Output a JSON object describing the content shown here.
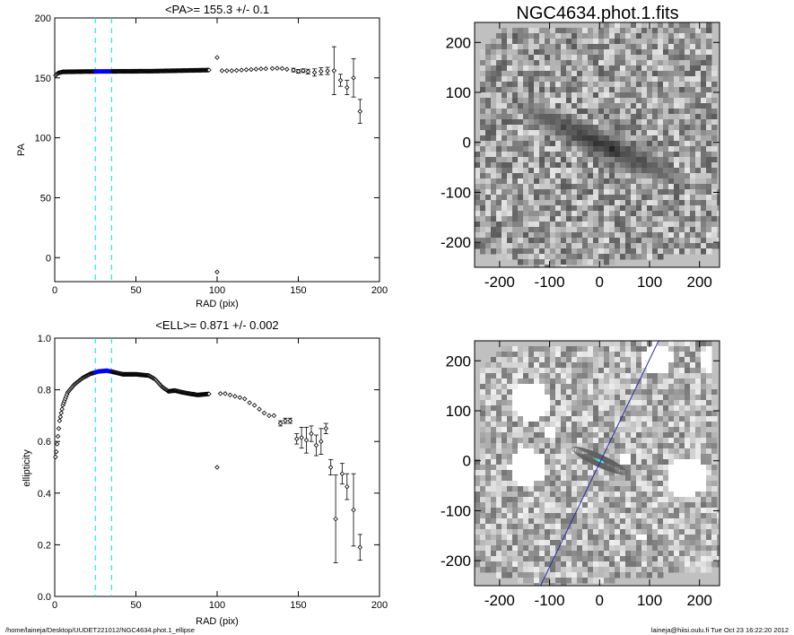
{
  "footer": {
    "path": "/home/laineja/Desktop/UUDET221012/NGC4634.phot.1_ellipse",
    "stamp": "laineja@hiisi.oulu.fi  Tue Oct 23 16:22:20 2012"
  },
  "colors": {
    "cyan_marker": "#00e5e5",
    "blue_points": "#0000ff",
    "sky_bg": "#c0c0c0",
    "points": "#000000"
  },
  "chart_data": [
    {
      "type": "scatter",
      "title": "<PA>= 155.3 +/-   0.1",
      "xlabel": "RAD (pix)",
      "ylabel": "PA",
      "xlim": [
        0,
        200
      ],
      "ylim": [
        -20,
        200
      ],
      "xticks": [
        "0",
        "50",
        "100",
        "150",
        "200"
      ],
      "yticks": [
        "0",
        "50",
        "100",
        "150",
        "200"
      ],
      "vlines": [
        25,
        35
      ],
      "highlight_range": [
        25,
        35
      ],
      "series": [
        {
          "dense": {
            "x_start": 0.5,
            "x_end": 95,
            "step": 0.5,
            "values_at": [
              [
                0.5,
                152
              ],
              [
                2,
                154
              ],
              [
                5,
                155
              ],
              [
                20,
                155.3
              ],
              [
                60,
                155.6
              ],
              [
                95,
                156.5
              ]
            ]
          },
          "points": [
            {
              "x": 100,
              "y": 167
            },
            {
              "x": 100,
              "y": -12
            },
            {
              "x": 103,
              "y": 156
            },
            {
              "x": 106,
              "y": 156
            },
            {
              "x": 109,
              "y": 156
            },
            {
              "x": 112,
              "y": 156.2
            },
            {
              "x": 115,
              "y": 156.5
            },
            {
              "x": 118,
              "y": 156.8
            },
            {
              "x": 121,
              "y": 157
            },
            {
              "x": 124,
              "y": 157.3
            },
            {
              "x": 127,
              "y": 157.5
            },
            {
              "x": 130,
              "y": 157.6
            },
            {
              "x": 134,
              "y": 157.8
            },
            {
              "x": 137,
              "y": 158
            },
            {
              "x": 140,
              "y": 157.8
            },
            {
              "x": 143,
              "y": 157.2
            },
            {
              "x": 147,
              "y": 156.5,
              "err": 1.5
            },
            {
              "x": 150,
              "y": 155.5,
              "err": 1.5
            },
            {
              "x": 153,
              "y": 156,
              "err": 1.5
            },
            {
              "x": 156,
              "y": 155.2,
              "err": 2
            },
            {
              "x": 160,
              "y": 154.5,
              "err": 3
            },
            {
              "x": 164,
              "y": 155.5,
              "err": 3
            },
            {
              "x": 168,
              "y": 155.8,
              "err": 3
            },
            {
              "x": 172,
              "y": 156,
              "err": 20
            },
            {
              "x": 176,
              "y": 148,
              "err": 5
            },
            {
              "x": 180,
              "y": 142,
              "err": 6
            },
            {
              "x": 184,
              "y": 150,
              "err": 16
            },
            {
              "x": 188,
              "y": 122,
              "err": 10
            }
          ]
        }
      ]
    },
    {
      "type": "scatter",
      "title": "<ELL>= 0.871 +/-  0.002",
      "xlabel": "RAD (pix)",
      "ylabel": "ellipticity",
      "xlim": [
        0,
        200
      ],
      "ylim": [
        0,
        1
      ],
      "xticks": [
        "0",
        "50",
        "100",
        "150",
        "200"
      ],
      "yticks": [
        "0.0",
        "0.2",
        "0.4",
        "0.6",
        "0.8",
        "1.0"
      ],
      "vlines": [
        25,
        35
      ],
      "highlight_range": [
        25,
        35
      ],
      "series": [
        {
          "dense": {
            "x_start": 0.5,
            "x_end": 95,
            "step": 0.5,
            "values_at": [
              [
                0.5,
                0.54
              ],
              [
                1,
                0.56
              ],
              [
                2,
                0.62
              ],
              [
                3,
                0.68
              ],
              [
                5,
                0.74
              ],
              [
                8,
                0.79
              ],
              [
                12,
                0.82
              ],
              [
                17,
                0.845
              ],
              [
                22,
                0.862
              ],
              [
                27,
                0.871
              ],
              [
                32,
                0.874
              ],
              [
                36,
                0.869
              ],
              [
                42,
                0.86
              ],
              [
                50,
                0.86
              ],
              [
                58,
                0.855
              ],
              [
                62,
                0.84
              ],
              [
                66,
                0.812
              ],
              [
                70,
                0.794
              ],
              [
                74,
                0.797
              ],
              [
                78,
                0.791
              ],
              [
                82,
                0.786
              ],
              [
                88,
                0.78
              ],
              [
                95,
                0.784
              ]
            ]
          },
          "points": [
            {
              "x": 100,
              "y": 0.5
            },
            {
              "x": 102,
              "y": 0.785
            },
            {
              "x": 105,
              "y": 0.785
            },
            {
              "x": 108,
              "y": 0.78
            },
            {
              "x": 111,
              "y": 0.775
            },
            {
              "x": 114,
              "y": 0.77
            },
            {
              "x": 117,
              "y": 0.765
            },
            {
              "x": 120,
              "y": 0.75
            },
            {
              "x": 123,
              "y": 0.74
            },
            {
              "x": 126,
              "y": 0.725
            },
            {
              "x": 129,
              "y": 0.71
            },
            {
              "x": 132,
              "y": 0.7
            },
            {
              "x": 135,
              "y": 0.7
            },
            {
              "x": 139,
              "y": 0.67,
              "err": 0.01
            },
            {
              "x": 142,
              "y": 0.68,
              "err": 0.01
            },
            {
              "x": 145,
              "y": 0.68,
              "err": 0.01
            },
            {
              "x": 149,
              "y": 0.61,
              "err": 0.02
            },
            {
              "x": 152,
              "y": 0.615,
              "err": 0.04
            },
            {
              "x": 155,
              "y": 0.605,
              "err": 0.05
            },
            {
              "x": 158,
              "y": 0.63,
              "err": 0.03
            },
            {
              "x": 161,
              "y": 0.585,
              "err": 0.04
            },
            {
              "x": 164,
              "y": 0.6,
              "err": 0.05
            },
            {
              "x": 167,
              "y": 0.65,
              "err": 0.02
            },
            {
              "x": 170,
              "y": 0.5,
              "err": 0.03
            },
            {
              "x": 173,
              "y": 0.3,
              "err": 0.17
            },
            {
              "x": 177,
              "y": 0.475,
              "err": 0.04
            },
            {
              "x": 180,
              "y": 0.425,
              "err": 0.05
            },
            {
              "x": 184,
              "y": 0.335,
              "err": 0.14
            },
            {
              "x": 188,
              "y": 0.19,
              "err": 0.05
            }
          ]
        }
      ]
    },
    {
      "type": "heatmap",
      "title": "NGC4634.phot.1.fits",
      "xlim": [
        -250,
        240
      ],
      "ylim": [
        -250,
        240
      ],
      "xticks": [
        "-200",
        "-100",
        "0",
        "100",
        "200"
      ],
      "yticks": [
        "-200",
        "-100",
        "0",
        "100",
        "200"
      ],
      "galaxy": {
        "center": [
          0,
          0
        ],
        "semi_major": 90,
        "axis_ratio": 0.13,
        "pa_deg": 155.3
      }
    },
    {
      "type": "heatmap",
      "title": "",
      "xlim": [
        -250,
        240
      ],
      "ylim": [
        -250,
        240
      ],
      "xticks": [
        "-200",
        "-100",
        "0",
        "100",
        "200"
      ],
      "yticks": [
        "-200",
        "-100",
        "0",
        "100",
        "200"
      ],
      "masks": [
        {
          "x": -140,
          "y": 120,
          "r": 38
        },
        {
          "x": 110,
          "y": 205,
          "r": 30
        },
        {
          "x": 220,
          "y": 200,
          "r": 25
        },
        {
          "x": -145,
          "y": -10,
          "r": 36
        },
        {
          "x": 170,
          "y": -30,
          "r": 40
        },
        {
          "x": 50,
          "y": 10,
          "r": 12
        },
        {
          "x": -100,
          "y": 60,
          "r": 10
        },
        {
          "x": 80,
          "y": -150,
          "r": 10
        }
      ],
      "line": {
        "x1": -118,
        "y1": -250,
        "x2": 118,
        "y2": 240
      },
      "contours": {
        "count": 14,
        "max_semi_major": 60,
        "axis_ratio": 0.2,
        "pa_deg": 155.3
      }
    }
  ]
}
